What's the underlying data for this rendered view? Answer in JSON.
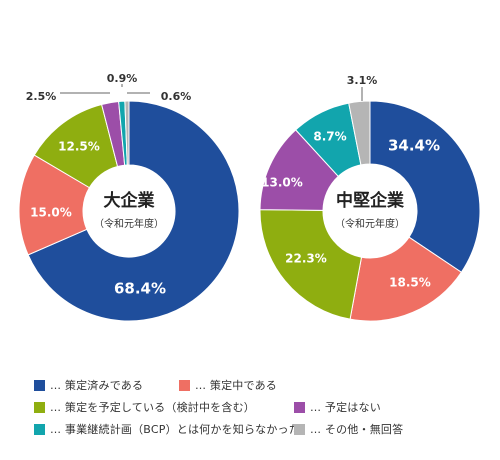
{
  "chart_data": [
    {
      "type": "pie",
      "title": "大企業",
      "subtitle": "（令和元年度）",
      "categories": [
        "策定済みである",
        "策定中である",
        "策定を予定している（検討中を含む）",
        "予定はない",
        "事業継続計画（BCP）とは何かを知らなかった",
        "その他・無回答"
      ],
      "values": [
        68.4,
        15.0,
        12.5,
        2.5,
        0.9,
        0.6
      ],
      "labels": [
        "68.4%",
        "15.0%",
        "12.5%",
        "2.5%",
        "0.9%",
        "0.6%"
      ]
    },
    {
      "type": "pie",
      "title": "中堅企業",
      "subtitle": "（令和元年度）",
      "categories": [
        "策定済みである",
        "策定中である",
        "策定を予定している（検討中を含む）",
        "予定はない",
        "事業継続計画（BCP）とは何かを知らなかった",
        "その他・無回答"
      ],
      "values": [
        34.4,
        18.5,
        22.3,
        13.0,
        8.7,
        3.1
      ],
      "labels": [
        "34.4%",
        "18.5%",
        "22.3%",
        "13.0%",
        "8.7%",
        "3.1%"
      ]
    }
  ],
  "colors": [
    "#1f4e9c",
    "#ef6f63",
    "#8fae10",
    "#9c4ea8",
    "#12a5ad",
    "#b5b5b5"
  ],
  "legend": {
    "items": [
      {
        "label": "… 策定済みである",
        "color": "#1f4e9c"
      },
      {
        "label": "… 策定中である",
        "color": "#ef6f63"
      },
      {
        "label": "… 策定を予定している（検討中を含む）",
        "color": "#8fae10"
      },
      {
        "label": "… 予定はない",
        "color": "#9c4ea8"
      },
      {
        "label": "… 事業継続計画（BCP）とは何かを知らなかった",
        "color": "#12a5ad"
      },
      {
        "label": "… その他・無回答",
        "color": "#b5b5b5"
      }
    ]
  }
}
